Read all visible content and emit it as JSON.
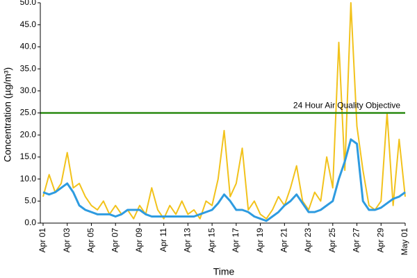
{
  "chart_data": {
    "type": "line",
    "x_label": "Time",
    "y_label": "Concentration (µg/m³)",
    "x": [
      0,
      0.5,
      1,
      1.5,
      2,
      2.5,
      3,
      3.5,
      4,
      4.5,
      5,
      5.5,
      6,
      6.5,
      7,
      7.5,
      8,
      8.5,
      9,
      9.5,
      10,
      10.5,
      11,
      11.5,
      12,
      12.5,
      13,
      13.5,
      14,
      14.5,
      15,
      15.5,
      16,
      16.5,
      17,
      17.5,
      18,
      18.5,
      19,
      19.5,
      20,
      20.5,
      21,
      21.5,
      22,
      22.5,
      23,
      23.5,
      24,
      24.5,
      25,
      25.5,
      26,
      26.5,
      27,
      27.5,
      28,
      28.5,
      29,
      29.5,
      30
    ],
    "series": [
      {
        "color": "#f2c21b",
        "values": [
          6,
          11,
          7,
          9,
          16,
          8,
          9,
          6,
          4,
          3,
          5,
          2,
          4,
          2,
          3,
          1,
          4,
          2,
          8,
          3,
          1,
          4,
          2,
          5,
          2,
          3,
          1,
          5,
          4,
          10,
          21,
          6,
          9,
          17,
          3,
          5,
          2,
          1,
          3,
          6,
          4,
          8,
          13,
          5,
          3,
          7,
          5,
          15,
          8,
          41,
          12,
          50,
          22,
          12,
          4,
          3,
          5,
          25,
          4,
          19,
          6
        ]
      },
      {
        "color": "#2e9be0",
        "values": [
          7,
          6.5,
          7,
          8,
          9,
          7,
          4,
          3,
          2.5,
          2,
          2,
          2,
          1.5,
          2,
          3,
          3,
          3,
          2,
          1.5,
          1.5,
          1.5,
          1.5,
          1.5,
          1.5,
          1.5,
          1.5,
          2,
          2.5,
          3,
          4.5,
          6.5,
          5,
          3,
          3,
          2.5,
          1.5,
          1,
          0.5,
          1.5,
          2.5,
          4,
          5,
          6.5,
          4.5,
          2.5,
          2.5,
          3,
          4,
          5,
          10,
          14,
          19,
          18,
          5,
          3,
          3,
          3.5,
          4.5,
          5.5,
          6,
          7
        ]
      }
    ],
    "reference_line": {
      "value": 25,
      "color": "#2a8a12",
      "label": "24 Hour Air Quality Objective"
    },
    "xlim": [
      0,
      30
    ],
    "xticks": [
      {
        "value": 0,
        "label": "Apr 01"
      },
      {
        "value": 2,
        "label": "Apr 03"
      },
      {
        "value": 4,
        "label": "Apr 05"
      },
      {
        "value": 6,
        "label": "Apr 07"
      },
      {
        "value": 8,
        "label": "Apr 09"
      },
      {
        "value": 10,
        "label": "Apr 11"
      },
      {
        "value": 12,
        "label": "Apr 13"
      },
      {
        "value": 14,
        "label": "Apr 15"
      },
      {
        "value": 16,
        "label": "Apr 17"
      },
      {
        "value": 18,
        "label": "Apr 19"
      },
      {
        "value": 20,
        "label": "Apr 21"
      },
      {
        "value": 22,
        "label": "Apr 23"
      },
      {
        "value": 24,
        "label": "Apr 25"
      },
      {
        "value": 26,
        "label": "Apr 27"
      },
      {
        "value": 28,
        "label": "Apr 29"
      },
      {
        "value": 30,
        "label": "May 01"
      }
    ],
    "ylim": [
      0,
      50
    ],
    "yticks": [
      {
        "value": 0,
        "label": "0.0"
      },
      {
        "value": 5,
        "label": "5.0"
      },
      {
        "value": 10,
        "label": "10.0"
      },
      {
        "value": 15,
        "label": "15.0"
      },
      {
        "value": 20,
        "label": "20.0"
      },
      {
        "value": 25,
        "label": "25.0"
      },
      {
        "value": 30,
        "label": "30.0"
      },
      {
        "value": 35,
        "label": "35.0"
      },
      {
        "value": 40,
        "label": "40.0"
      },
      {
        "value": 45,
        "label": "45.0"
      },
      {
        "value": 50,
        "label": "50.0"
      }
    ],
    "grid": false
  }
}
